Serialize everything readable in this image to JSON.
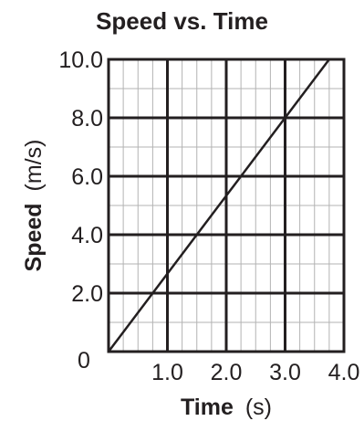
{
  "chart_data": {
    "type": "line",
    "title": "Speed vs. Time",
    "xlabel": "Time",
    "xlabel_unit": "(s)",
    "ylabel": "Speed",
    "ylabel_unit": "(m/s)",
    "xlim": [
      0,
      4.0
    ],
    "ylim": [
      0,
      10.0
    ],
    "x_ticks": [
      0,
      1.0,
      2.0,
      3.0,
      4.0
    ],
    "x_tick_labels": [
      "1.0",
      "2.0",
      "3.0",
      "4.0"
    ],
    "y_ticks": [
      0,
      2.0,
      4.0,
      6.0,
      8.0,
      10.0
    ],
    "y_tick_labels": [
      "0",
      "2.0",
      "4.0",
      "6.0",
      "8.0",
      "10.0"
    ],
    "origin_label": "0",
    "grid": true,
    "series": [
      {
        "x": [
          0,
          3.75
        ],
        "y": [
          0,
          10.0
        ]
      }
    ],
    "colors": {
      "ink": "#231f20",
      "grid_minor": "#b3b3b3"
    }
  }
}
